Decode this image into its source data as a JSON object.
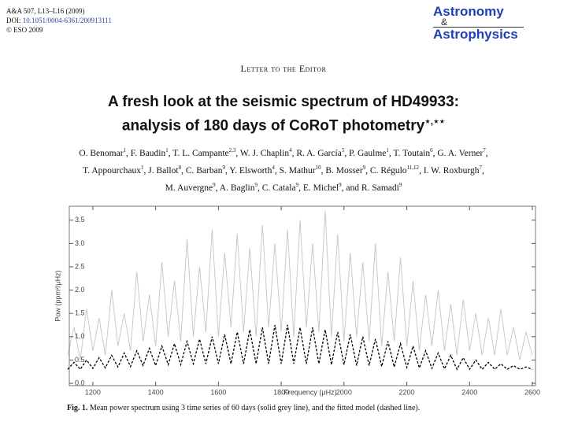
{
  "header": {
    "citation": "A&A 507, L13–L16 (2009)",
    "doi_prefix": "DOI:",
    "doi": "10.1051/0004-6361/200913111",
    "copyright": "© ESO 2009"
  },
  "logo": {
    "line1": "Astronomy",
    "amp": "&",
    "line2": "Astrophysics"
  },
  "section": "Letter to the Editor",
  "title": {
    "lines": [
      "A fresh look at the seismic spectrum of HD49933:",
      "analysis of 180 days of CoRoT photometry"
    ],
    "note": "⋆,⋆⋆"
  },
  "authors": [
    [
      {
        "name": "O. Benomar",
        "aff": "1",
        "sep": ","
      },
      {
        "name": "F. Baudin",
        "aff": "1",
        "sep": ","
      },
      {
        "name": "T. L. Campante",
        "aff": "2,3",
        "sep": ","
      },
      {
        "name": "W. J. Chaplin",
        "aff": "4",
        "sep": ","
      },
      {
        "name": "R. A. García",
        "aff": "5",
        "sep": ","
      },
      {
        "name": "P. Gaulme",
        "aff": "1",
        "sep": ","
      },
      {
        "name": "T. Toutain",
        "aff": "6",
        "sep": ","
      },
      {
        "name": "G. A. Verner",
        "aff": "7",
        "sep": ","
      }
    ],
    [
      {
        "name": "T. Appourchaux",
        "aff": "1",
        "sep": ","
      },
      {
        "name": "J. Ballot",
        "aff": "8",
        "sep": ","
      },
      {
        "name": "C. Barban",
        "aff": "9",
        "sep": ","
      },
      {
        "name": "Y. Elsworth",
        "aff": "4",
        "sep": ","
      },
      {
        "name": "S. Mathur",
        "aff": "10",
        "sep": ","
      },
      {
        "name": "B. Mosser",
        "aff": "9",
        "sep": ","
      },
      {
        "name": "C. Régulo",
        "aff": "11,12",
        "sep": ","
      },
      {
        "name": "I. W. Roxburgh",
        "aff": "7",
        "sep": ","
      }
    ],
    [
      {
        "name": "M. Auvergne",
        "aff": "9",
        "sep": ","
      },
      {
        "name": "A. Baglin",
        "aff": "9",
        "sep": ","
      },
      {
        "name": "C. Catala",
        "aff": "9",
        "sep": ","
      },
      {
        "name": "E. Michel",
        "aff": "9",
        "sep": ","
      },
      {
        "name": "and R. Samadi",
        "aff": "9"
      }
    ]
  ],
  "chart_data": {
    "type": "line",
    "xlabel": "Frequency (μHz)",
    "ylabel": "Pow (ppm²/μHz)",
    "x": [
      1120,
      1140,
      1160,
      1180,
      1200,
      1220,
      1240,
      1260,
      1280,
      1300,
      1320,
      1340,
      1360,
      1380,
      1400,
      1420,
      1440,
      1460,
      1480,
      1500,
      1520,
      1540,
      1560,
      1580,
      1600,
      1620,
      1640,
      1660,
      1680,
      1700,
      1720,
      1740,
      1760,
      1780,
      1800,
      1820,
      1840,
      1860,
      1880,
      1900,
      1920,
      1940,
      1960,
      1980,
      2000,
      2020,
      2040,
      2060,
      2080,
      2100,
      2120,
      2140,
      2160,
      2180,
      2200,
      2220,
      2240,
      2260,
      2280,
      2300,
      2320,
      2340,
      2360,
      2380,
      2400,
      2420,
      2440,
      2460,
      2480,
      2500,
      2520,
      2540,
      2560,
      2580,
      2600
    ],
    "series": [
      {
        "color": "#c4c4c4",
        "linestyle": "solid",
        "values": [
          0.6,
          1.2,
          0.5,
          1.6,
          0.7,
          1.4,
          0.6,
          2.0,
          0.8,
          1.5,
          0.7,
          2.4,
          0.9,
          1.9,
          0.8,
          2.6,
          1.0,
          2.2,
          0.9,
          3.1,
          1.0,
          2.5,
          1.1,
          3.3,
          1.0,
          2.8,
          1.2,
          3.2,
          1.1,
          2.9,
          1.0,
          3.4,
          1.2,
          3.0,
          1.1,
          3.3,
          1.0,
          3.5,
          1.2,
          3.0,
          1.1,
          3.7,
          1.0,
          3.2,
          0.9,
          2.8,
          1.0,
          2.6,
          0.9,
          3.0,
          0.8,
          2.4,
          0.9,
          2.7,
          0.8,
          2.2,
          0.7,
          1.9,
          0.8,
          2.0,
          0.7,
          1.7,
          0.6,
          1.8,
          0.7,
          1.5,
          0.6,
          1.4,
          0.6,
          1.6,
          0.6,
          1.2,
          0.5,
          1.1,
          0.6
        ]
      },
      {
        "color": "#000000",
        "linestyle": "dashed",
        "values": [
          0.3,
          0.45,
          0.3,
          0.5,
          0.32,
          0.55,
          0.33,
          0.6,
          0.35,
          0.65,
          0.36,
          0.7,
          0.38,
          0.75,
          0.38,
          0.8,
          0.4,
          0.85,
          0.4,
          0.9,
          0.42,
          0.95,
          0.42,
          1.0,
          0.42,
          1.05,
          0.42,
          1.1,
          0.42,
          1.15,
          0.42,
          1.2,
          0.42,
          1.25,
          0.42,
          1.25,
          0.42,
          1.2,
          0.42,
          1.2,
          0.42,
          1.15,
          0.4,
          1.1,
          0.4,
          1.05,
          0.38,
          1.0,
          0.38,
          0.95,
          0.36,
          0.9,
          0.35,
          0.85,
          0.34,
          0.8,
          0.33,
          0.7,
          0.32,
          0.65,
          0.31,
          0.6,
          0.3,
          0.55,
          0.3,
          0.5,
          0.3,
          0.45,
          0.3,
          0.42,
          0.3,
          0.38,
          0.3,
          0.35,
          0.3
        ]
      }
    ],
    "xlim": [
      1125,
      2610
    ],
    "xticks": [
      1200,
      1400,
      1600,
      1800,
      2000,
      2200,
      2400,
      2600
    ],
    "ylim": [
      -0.05,
      3.8
    ],
    "yticks": [
      {
        "value": 0,
        "label": "0.0"
      },
      0.5,
      {
        "value": 1,
        "label": "1.0"
      },
      1.5,
      {
        "value": 2,
        "label": "2.0"
      },
      2.5,
      {
        "value": 3,
        "label": "3.0"
      },
      3.5
    ]
  },
  "caption": {
    "label": "Fig. 1.",
    "text": "Mean power spectrum using 3 time series of 60 days (solid grey line), and the fitted model (dashed line)."
  }
}
